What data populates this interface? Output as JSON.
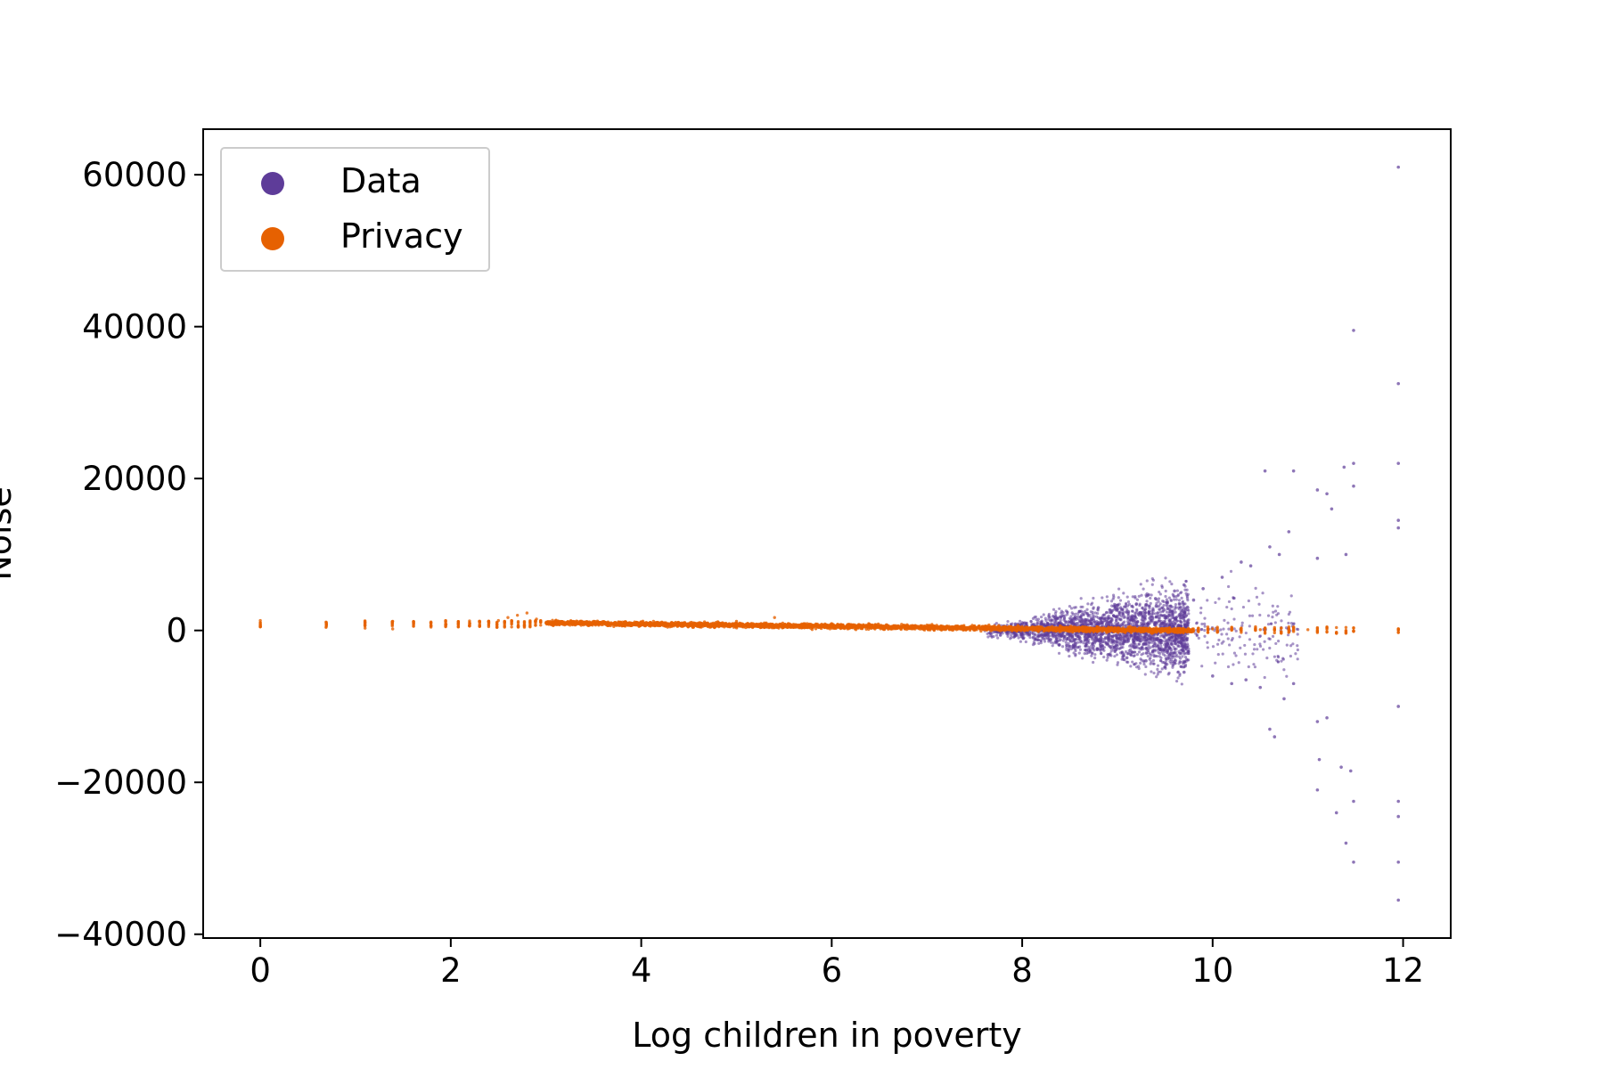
{
  "chart_data": {
    "type": "scatter",
    "title": "",
    "xlabel": "Log children in poverty",
    "ylabel": "Noise",
    "xlim": [
      -0.6,
      12.5
    ],
    "ylim": [
      -40500,
      66000
    ],
    "xticks": [
      0,
      2,
      4,
      6,
      8,
      10,
      12
    ],
    "yticks": [
      -40000,
      -20000,
      0,
      20000,
      40000,
      60000
    ],
    "xtick_labels": [
      "0",
      "2",
      "4",
      "6",
      "8",
      "10",
      "12"
    ],
    "ytick_labels": [
      "−40000",
      "−20000",
      "0",
      "20000",
      "40000",
      "60000"
    ],
    "grid": false,
    "legend_position": "top-left",
    "series": [
      {
        "name": "Data",
        "color": "#5e3c99",
        "points": [
          [
            8.2,
            900
          ],
          [
            8.3,
            -1200
          ],
          [
            8.4,
            1800
          ],
          [
            8.5,
            -2100
          ],
          [
            8.6,
            2500
          ],
          [
            8.7,
            -2600
          ],
          [
            8.8,
            3000
          ],
          [
            8.9,
            -3200
          ],
          [
            9.0,
            3300
          ],
          [
            9.1,
            -3600
          ],
          [
            9.2,
            3500
          ],
          [
            9.3,
            -4000
          ],
          [
            9.4,
            4200
          ],
          [
            9.5,
            -4800
          ],
          [
            9.6,
            5200
          ],
          [
            9.7,
            6000
          ],
          [
            9.7,
            -5500
          ],
          [
            9.8,
            4000
          ],
          [
            9.9,
            5500
          ],
          [
            10.0,
            -6000
          ],
          [
            10.1,
            7000
          ],
          [
            10.2,
            -7000
          ],
          [
            10.3,
            9000
          ],
          [
            10.35,
            -6500
          ],
          [
            10.4,
            8500
          ],
          [
            10.5,
            -7500
          ],
          [
            10.55,
            21000
          ],
          [
            10.6,
            11000
          ],
          [
            10.6,
            -13000
          ],
          [
            10.65,
            -14000
          ],
          [
            10.7,
            10000
          ],
          [
            10.75,
            -9000
          ],
          [
            10.8,
            13000
          ],
          [
            10.85,
            21000
          ],
          [
            10.85,
            -7000
          ],
          [
            11.1,
            18500
          ],
          [
            11.1,
            9500
          ],
          [
            11.1,
            -12000
          ],
          [
            11.1,
            -21000
          ],
          [
            11.12,
            -17000
          ],
          [
            11.2,
            18000
          ],
          [
            11.2,
            -11500
          ],
          [
            11.25,
            16000
          ],
          [
            11.3,
            -24000
          ],
          [
            11.35,
            -18000
          ],
          [
            11.38,
            21500
          ],
          [
            11.4,
            -28000
          ],
          [
            11.4,
            10000
          ],
          [
            11.45,
            -18500
          ],
          [
            11.48,
            39500
          ],
          [
            11.48,
            22000
          ],
          [
            11.48,
            19000
          ],
          [
            11.48,
            -22500
          ],
          [
            11.48,
            -30500
          ],
          [
            11.95,
            61000
          ],
          [
            11.95,
            32500
          ],
          [
            11.95,
            22000
          ],
          [
            11.95,
            14500
          ],
          [
            11.95,
            13500
          ],
          [
            11.95,
            -10000
          ],
          [
            11.95,
            -22500
          ],
          [
            11.95,
            -24500
          ],
          [
            11.95,
            -30500
          ],
          [
            11.95,
            -35500
          ]
        ]
      },
      {
        "name": "Privacy",
        "color": "#e66101",
        "points": [
          [
            0.0,
            1300
          ],
          [
            0.0,
            500
          ],
          [
            0.69,
            1100
          ],
          [
            0.69,
            400
          ],
          [
            1.1,
            1000
          ],
          [
            1.1,
            300
          ],
          [
            1.39,
            1200
          ],
          [
            1.39,
            200
          ],
          [
            1.61,
            900
          ],
          [
            1.79,
            1000
          ],
          [
            1.95,
            800
          ],
          [
            2.08,
            1100
          ],
          [
            2.2,
            900
          ],
          [
            2.3,
            1200
          ],
          [
            2.4,
            1000
          ],
          [
            2.5,
            1300
          ],
          [
            2.6,
            1700
          ],
          [
            2.7,
            2000
          ],
          [
            2.8,
            2300
          ],
          [
            2.9,
            1500
          ],
          [
            3.5,
            1200
          ],
          [
            4.0,
            900
          ],
          [
            5.0,
            1200
          ],
          [
            5.4,
            1700
          ],
          [
            6.0,
            900
          ],
          [
            7.0,
            700
          ],
          [
            7.5,
            600
          ],
          [
            8.0,
            500
          ],
          [
            9.0,
            300
          ],
          [
            10.0,
            200
          ],
          [
            10.5,
            100
          ],
          [
            11.0,
            100
          ],
          [
            11.95,
            100
          ]
        ]
      }
    ]
  }
}
